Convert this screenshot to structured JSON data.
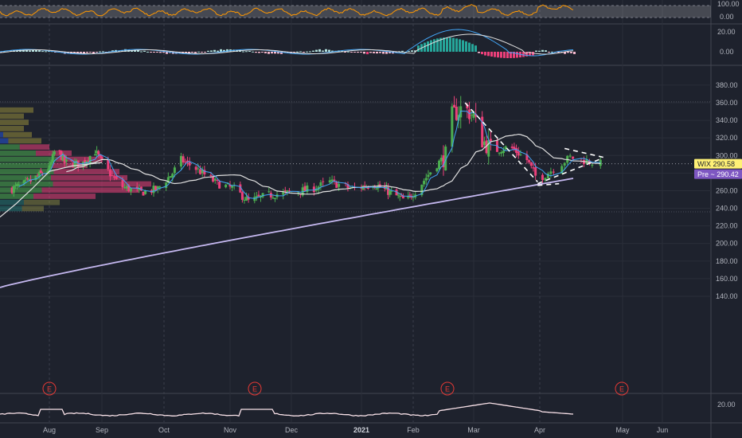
{
  "symbol": "WIX",
  "colors": {
    "background": "#1e222d",
    "grid": "#2a2e39",
    "up": "#26a69a",
    "up_vivid": "#4caf50",
    "down": "#ec407a",
    "ma_fast": "#42a5f5",
    "ma_mid": "#e0e0e0",
    "ma_slow": "#c5b8f0",
    "rsi": "#ff9800",
    "last_price_tag": "#fff176",
    "pre_tag": "#7e57c2"
  },
  "price_panel": {
    "y_ticks": [
      "380.00",
      "360.00",
      "340.00",
      "320.00",
      "300.00",
      "280.00",
      "260.00",
      "240.00",
      "220.00",
      "200.00",
      "180.00",
      "160.00",
      "140.00"
    ],
    "ylim": [
      130,
      390
    ],
    "last_price": {
      "label": "WIX",
      "value": "290.58"
    },
    "pre_price": {
      "label": "Pre",
      "value": "290.42"
    }
  },
  "rsi_panel": {
    "y_ticks": [
      "100.00",
      "0.00"
    ]
  },
  "macd_panel": {
    "y_ticks": [
      "20.00",
      "0.00"
    ]
  },
  "lower_panel": {
    "y_ticks": [
      "20.00"
    ]
  },
  "x_axis": {
    "labels": [
      {
        "text": "Aug",
        "bold": false
      },
      {
        "text": "Sep",
        "bold": false
      },
      {
        "text": "Oct",
        "bold": false
      },
      {
        "text": "Nov",
        "bold": false
      },
      {
        "text": "Dec",
        "bold": false
      },
      {
        "text": "2021",
        "bold": true
      },
      {
        "text": "Feb",
        "bold": false
      },
      {
        "text": "Mar",
        "bold": false
      },
      {
        "text": "Apr",
        "bold": false
      },
      {
        "text": "May",
        "bold": false
      },
      {
        "text": "Jun",
        "bold": false
      }
    ]
  },
  "earnings_markers": [
    {
      "label": "E",
      "date": "Aug"
    },
    {
      "label": "E",
      "date": "Nov"
    },
    {
      "label": "E",
      "date": "Feb"
    },
    {
      "label": "E",
      "date": "May"
    }
  ],
  "chart_data": {
    "type": "candlestick",
    "symbol": "WIX",
    "x_labels": [
      "Aug",
      "Sep",
      "Oct",
      "Nov",
      "Dec",
      "2021",
      "Feb",
      "Mar",
      "Apr",
      "May",
      "Jun"
    ],
    "ylim": [
      130,
      390
    ],
    "price_path": [
      {
        "t": "Jul 10",
        "close": 262
      },
      {
        "t": "Jul 20",
        "close": 270
      },
      {
        "t": "Aug 1",
        "close": 285
      },
      {
        "t": "Aug 5",
        "close": 310
      },
      {
        "t": "Aug 10",
        "close": 292
      },
      {
        "t": "Aug 20",
        "close": 290
      },
      {
        "t": "Aug 28",
        "close": 305
      },
      {
        "t": "Sep 3",
        "close": 285
      },
      {
        "t": "Sep 10",
        "close": 265
      },
      {
        "t": "Sep 20",
        "close": 258
      },
      {
        "t": "Sep 28",
        "close": 262
      },
      {
        "t": "Oct 5",
        "close": 280
      },
      {
        "t": "Oct 9",
        "close": 295
      },
      {
        "t": "Oct 16",
        "close": 285
      },
      {
        "t": "Oct 26",
        "close": 268
      },
      {
        "t": "Nov 3",
        "close": 262
      },
      {
        "t": "Nov 10",
        "close": 248
      },
      {
        "t": "Nov 20",
        "close": 255
      },
      {
        "t": "Dec 1",
        "close": 258
      },
      {
        "t": "Dec 10",
        "close": 262
      },
      {
        "t": "Dec 18",
        "close": 270
      },
      {
        "t": "Dec 28",
        "close": 262
      },
      {
        "t": "Jan 8",
        "close": 268
      },
      {
        "t": "Jan 18",
        "close": 258
      },
      {
        "t": "Jan 28",
        "close": 248
      },
      {
        "t": "Feb 3",
        "close": 262
      },
      {
        "t": "Feb 10",
        "close": 285
      },
      {
        "t": "Feb 16",
        "close": 300
      },
      {
        "t": "Feb 19",
        "close": 345
      },
      {
        "t": "Feb 24",
        "close": 355
      },
      {
        "t": "Mar 1",
        "close": 345
      },
      {
        "t": "Mar 4",
        "close": 320
      },
      {
        "t": "Mar 10",
        "close": 305
      },
      {
        "t": "Mar 18",
        "close": 310
      },
      {
        "t": "Mar 26",
        "close": 295
      },
      {
        "t": "Mar 31",
        "close": 272
      },
      {
        "t": "Apr 6",
        "close": 285
      },
      {
        "t": "Apr 12",
        "close": 298
      },
      {
        "t": "Apr 19",
        "close": 293
      },
      {
        "t": "Apr 23",
        "close": 290.58
      }
    ],
    "moving_averages": [
      {
        "name": "MA fast",
        "color": "#42a5f5"
      },
      {
        "name": "MA mid",
        "color": "#e0e0e0"
      },
      {
        "name": "MA slow",
        "color": "#c5b8f0",
        "start": 150,
        "end": 274
      }
    ],
    "pattern": "converging wedge (dashed)",
    "indicators": [
      "RSI",
      "MACD",
      "Volatility"
    ]
  }
}
